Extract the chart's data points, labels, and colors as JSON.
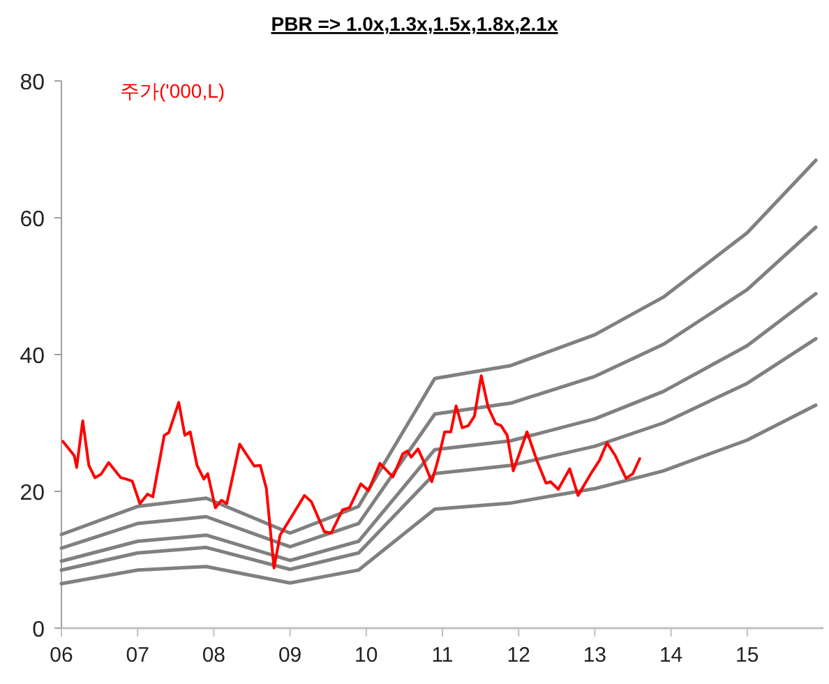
{
  "chart_data": {
    "type": "line",
    "title": "PBR => 1.0x,1.3x,1.5x,1.8x,2.1x",
    "xlim": [
      2006,
      2016
    ],
    "ylim": [
      0,
      80
    ],
    "xticks": [
      {
        "value": 2006,
        "label": "06"
      },
      {
        "value": 2007,
        "label": "07"
      },
      {
        "value": 2008,
        "label": "08"
      },
      {
        "value": 2009,
        "label": "09"
      },
      {
        "value": 2010,
        "label": "10"
      },
      {
        "value": 2011,
        "label": "11"
      },
      {
        "value": 2012,
        "label": "12"
      },
      {
        "value": 2013,
        "label": "13"
      },
      {
        "value": 2014,
        "label": "14"
      },
      {
        "value": 2015,
        "label": "15"
      }
    ],
    "yticks": [
      0,
      20,
      40,
      60,
      80
    ],
    "series": [
      {
        "color": "#808080",
        "x": [
          2006.0,
          2007.0,
          2007.9,
          2009.0,
          2009.9,
          2010.9,
          2011.9,
          2013.0,
          2013.9,
          2015.0,
          2015.9
        ],
        "values": [
          6.5,
          8.5,
          9.0,
          6.6,
          8.5,
          17.4,
          18.3,
          20.4,
          23.0,
          27.5,
          32.6
        ]
      },
      {
        "color": "#808080",
        "x": [
          2006.0,
          2007.0,
          2007.9,
          2009.0,
          2009.9,
          2010.9,
          2011.9,
          2013.0,
          2013.9,
          2015.0,
          2015.9
        ],
        "values": [
          8.5,
          11.0,
          11.8,
          8.6,
          11.0,
          22.6,
          23.8,
          26.6,
          30.0,
          35.8,
          42.3
        ]
      },
      {
        "color": "#808080",
        "x": [
          2006.0,
          2007.0,
          2007.9,
          2009.0,
          2009.9,
          2010.9,
          2011.9,
          2013.0,
          2013.9,
          2015.0,
          2015.9
        ],
        "values": [
          9.8,
          12.7,
          13.6,
          9.9,
          12.7,
          26.1,
          27.4,
          30.6,
          34.6,
          41.3,
          48.9
        ]
      },
      {
        "color": "#808080",
        "x": [
          2006.0,
          2007.0,
          2007.9,
          2009.0,
          2009.9,
          2010.9,
          2011.9,
          2013.0,
          2013.9,
          2015.0,
          2015.9
        ],
        "values": [
          11.7,
          15.3,
          16.3,
          11.9,
          15.3,
          31.3,
          32.9,
          36.8,
          41.5,
          49.5,
          58.6
        ]
      },
      {
        "color": "#808080",
        "x": [
          2006.0,
          2007.0,
          2007.9,
          2009.0,
          2009.9,
          2010.9,
          2011.9,
          2013.0,
          2013.9,
          2015.0,
          2015.9
        ],
        "values": [
          13.7,
          17.8,
          19.0,
          13.9,
          17.8,
          36.5,
          38.4,
          42.9,
          48.4,
          57.8,
          68.4
        ]
      },
      {
        "name": "주가('000,L)",
        "color": "#ff0000",
        "x": [
          2006.02,
          2006.17,
          2006.2,
          2006.28,
          2006.36,
          2006.44,
          2006.52,
          2006.62,
          2006.78,
          2006.85,
          2006.93,
          2007.03,
          2007.13,
          2007.2,
          2007.35,
          2007.41,
          2007.54,
          2007.62,
          2007.69,
          2007.78,
          2007.87,
          2007.92,
          2008.02,
          2008.1,
          2008.17,
          2008.34,
          2008.53,
          2008.61,
          2008.69,
          2008.79,
          2008.87,
          2009.02,
          2009.19,
          2009.28,
          2009.45,
          2009.54,
          2009.69,
          2009.78,
          2009.93,
          2010.03,
          2010.18,
          2010.35,
          2010.48,
          2010.54,
          2010.59,
          2010.68,
          2010.75,
          2010.86,
          2010.94,
          2011.03,
          2011.11,
          2011.18,
          2011.26,
          2011.34,
          2011.42,
          2011.51,
          2011.6,
          2011.7,
          2011.77,
          2011.85,
          2011.93,
          2012.11,
          2012.24,
          2012.36,
          2012.42,
          2012.52,
          2012.67,
          2012.78,
          2012.96,
          2013.06,
          2013.16,
          2013.27,
          2013.41,
          2013.5,
          2013.59
        ],
        "values": [
          27.3,
          25.2,
          23.5,
          30.3,
          23.8,
          22.0,
          22.5,
          24.2,
          22.0,
          21.8,
          21.5,
          18.2,
          19.6,
          19.2,
          28.2,
          28.6,
          33.0,
          28.2,
          28.7,
          23.8,
          21.8,
          22.6,
          17.6,
          18.7,
          18.2,
          26.9,
          23.7,
          23.8,
          20.4,
          8.8,
          13.6,
          16.3,
          19.4,
          18.5,
          14.1,
          13.9,
          17.3,
          17.6,
          21.1,
          20.1,
          24.1,
          22.1,
          25.5,
          25.9,
          25.0,
          26.2,
          24.5,
          21.4,
          24.5,
          28.7,
          28.7,
          32.5,
          29.3,
          29.6,
          31.0,
          36.9,
          32.3,
          29.9,
          29.6,
          28.2,
          23.0,
          28.7,
          24.5,
          21.2,
          21.4,
          20.3,
          23.3,
          19.4,
          22.8,
          24.5,
          27.1,
          25.2,
          21.9,
          22.6,
          24.8
        ]
      }
    ]
  }
}
